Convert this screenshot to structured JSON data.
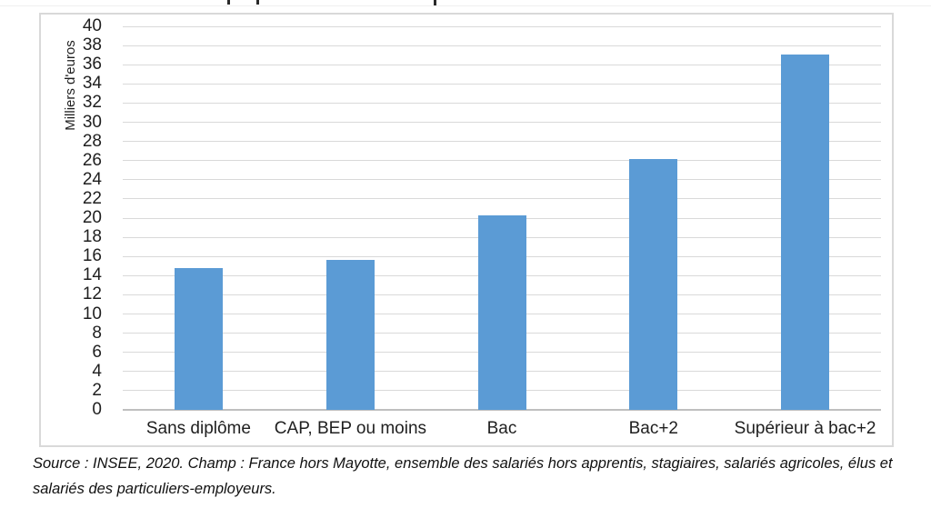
{
  "figure": {
    "source_lines": [
      "Source : INSEE, 2020. Champ : France hors Mayotte, ensemble des salariés hors apprentis, stagiaires, salariés agricoles, élus et",
      "salariés des particuliers-employeurs."
    ]
  },
  "chart_data": {
    "type": "bar",
    "categories": [
      "Sans diplôme",
      "CAP, BEP ou moins",
      "Bac",
      "Bac+2",
      "Supérieur à bac+2"
    ],
    "values": [
      14.8,
      15.6,
      20.3,
      26.2,
      37.1
    ],
    "title": "",
    "xlabel": "",
    "ylabel": "Milliers d'euros",
    "ylim": [
      0,
      40
    ],
    "ytick_step": 2,
    "grid": true,
    "legend": false,
    "bar_color": "#5b9bd5",
    "gridline_color": "#d9d9d9",
    "axis_line_color": "#bfbfbf",
    "text_color": "#1f1f1f"
  }
}
